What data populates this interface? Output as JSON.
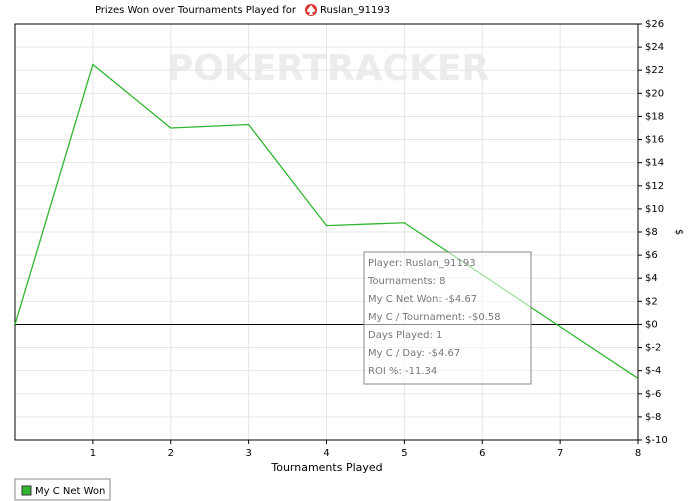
{
  "chart_data": {
    "type": "line",
    "title": "Prizes Won over Tournaments Played for",
    "player": "Ruslan_91193",
    "watermark": "POKERTRACKER",
    "x_label": "Tournaments Played",
    "y_label": "$",
    "x": [
      0,
      1,
      2,
      3,
      4,
      5,
      6,
      7,
      8
    ],
    "series": [
      {
        "name": "My C Net Won",
        "color": "#2fb52f",
        "values": [
          0,
          22.5,
          17.0,
          17.3,
          8.55,
          8.8,
          4.3,
          -0.2,
          -4.67
        ]
      }
    ],
    "xlim": [
      0,
      8
    ],
    "xticks": [
      1,
      2,
      3,
      4,
      5,
      6,
      7,
      8
    ],
    "ylim": [
      -10,
      26
    ],
    "yticks": [
      {
        "value": 26,
        "label": "$26"
      },
      {
        "value": 24,
        "label": "$24"
      },
      {
        "value": 22,
        "label": "$22"
      },
      {
        "value": 20,
        "label": "$20"
      },
      {
        "value": 18,
        "label": "$18"
      },
      {
        "value": 16,
        "label": "$16"
      },
      {
        "value": 14,
        "label": "$14"
      },
      {
        "value": 12,
        "label": "$12"
      },
      {
        "value": 10,
        "label": "$10"
      },
      {
        "value": 8,
        "label": "$8"
      },
      {
        "value": 6,
        "label": "$6"
      },
      {
        "value": 4,
        "label": "$4"
      },
      {
        "value": 2,
        "label": "$2"
      },
      {
        "value": 0,
        "label": "$0"
      },
      {
        "value": -2,
        "label": "$-2"
      },
      {
        "value": -4,
        "label": "$-4"
      },
      {
        "value": -6,
        "label": "$-6"
      },
      {
        "value": -8,
        "label": "$-8"
      },
      {
        "value": -10,
        "label": "$-10"
      }
    ],
    "grid": true,
    "tooltip": [
      "Player: Ruslan_91193",
      "Tournaments: 8",
      "My C Net Won: -$4.67",
      "My C / Tournament: -$0.58",
      "Days Played: 1",
      "My C / Day: -$4.67",
      "ROI %: -11.34"
    ]
  }
}
